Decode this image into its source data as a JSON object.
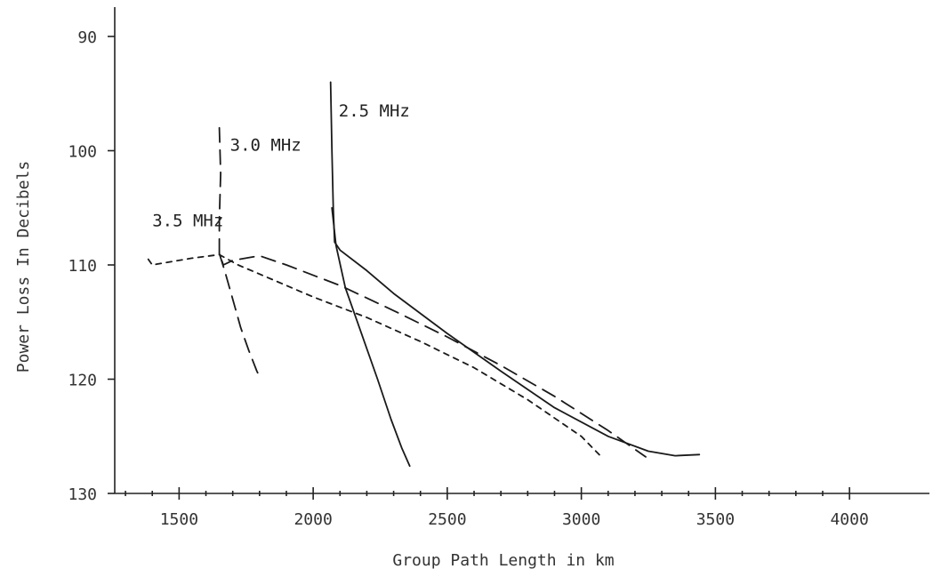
{
  "chart_data": {
    "type": "line",
    "title": "",
    "xlabel": "Group Path Length in km",
    "ylabel": "Power Loss In Decibels",
    "xlim": [
      1250,
      4000
    ],
    "ylim": [
      130,
      87
    ],
    "y_inverted": true,
    "grid": false,
    "x_ticks": [
      1500,
      2000,
      2500,
      3000,
      3500,
      4000
    ],
    "x_tick_labels": [
      "1500",
      "2000",
      "2500",
      "3000",
      "3500",
      "4000"
    ],
    "x_minor_ticks": [
      1300,
      1400,
      1600,
      1700,
      1800,
      1900,
      2100,
      2200,
      2300,
      2400,
      2600,
      2700,
      2800,
      2900,
      3100,
      3200,
      3300,
      3400,
      3600,
      3700,
      3800,
      3900
    ],
    "y_ticks": [
      90,
      100,
      110,
      120,
      130
    ],
    "y_tick_labels": [
      "90",
      "100",
      "110",
      "120",
      "130"
    ],
    "series": [
      {
        "name": "2.5 MHz",
        "dash": "solid",
        "branches": [
          [
            [
              2065,
              94
            ],
            [
              2070,
              100
            ],
            [
              2075,
              105
            ],
            [
              2080,
              108
            ],
            [
              2100,
              108.7
            ],
            [
              2200,
              110.5
            ],
            [
              2300,
              112.5
            ],
            [
              2500,
              116
            ],
            [
              2700,
              119.3
            ],
            [
              2900,
              122.5
            ],
            [
              3100,
              125
            ],
            [
              3250,
              126.3
            ],
            [
              3350,
              126.7
            ],
            [
              3440,
              126.6
            ]
          ],
          [
            [
              2070,
              105
            ],
            [
              2085,
              108.3
            ],
            [
              2120,
              112
            ],
            [
              2180,
              116
            ],
            [
              2240,
              120
            ],
            [
              2290,
              123.5
            ],
            [
              2330,
              126
            ],
            [
              2360,
              127.6
            ]
          ]
        ]
      },
      {
        "name": "3.0 MHz",
        "dash": "long",
        "branches": [
          [
            [
              1650,
              98
            ],
            [
              1655,
              102
            ],
            [
              1650,
              106
            ],
            [
              1650,
              109
            ],
            [
              1665,
              110
            ],
            [
              1700,
              109.6
            ],
            [
              1800,
              109.2
            ],
            [
              1900,
              110
            ],
            [
              2100,
              111.8
            ],
            [
              2300,
              114
            ],
            [
              2500,
              116.3
            ],
            [
              2700,
              118.8
            ],
            [
              2900,
              121.5
            ],
            [
              3100,
              124.5
            ],
            [
              3240,
              126.8
            ]
          ],
          [
            [
              1650,
              109
            ],
            [
              1670,
              110.5
            ],
            [
              1700,
              113
            ],
            [
              1730,
              115.5
            ],
            [
              1760,
              117.5
            ],
            [
              1790,
              119.3
            ],
            [
              1805,
              120
            ]
          ]
        ]
      },
      {
        "name": "3.5 MHz",
        "dash": "short",
        "branches": [
          [
            [
              1385,
              109.5
            ],
            [
              1400,
              110
            ],
            [
              1450,
              109.8
            ],
            [
              1550,
              109.4
            ],
            [
              1650,
              109.1
            ],
            [
              1720,
              110
            ],
            [
              1850,
              111.3
            ],
            [
              2000,
              112.8
            ],
            [
              2200,
              114.6
            ],
            [
              2400,
              116.7
            ],
            [
              2600,
              119
            ],
            [
              2800,
              121.8
            ],
            [
              3000,
              125
            ],
            [
              3075,
              126.8
            ]
          ]
        ]
      }
    ],
    "annotations": [
      {
        "text": "2.5 MHz",
        "x": 2095,
        "y": 97
      },
      {
        "text": "3.0 MHz",
        "x": 1690,
        "y": 100
      },
      {
        "text": "3.5 MHz",
        "x": 1400,
        "y": 106.6
      }
    ]
  }
}
